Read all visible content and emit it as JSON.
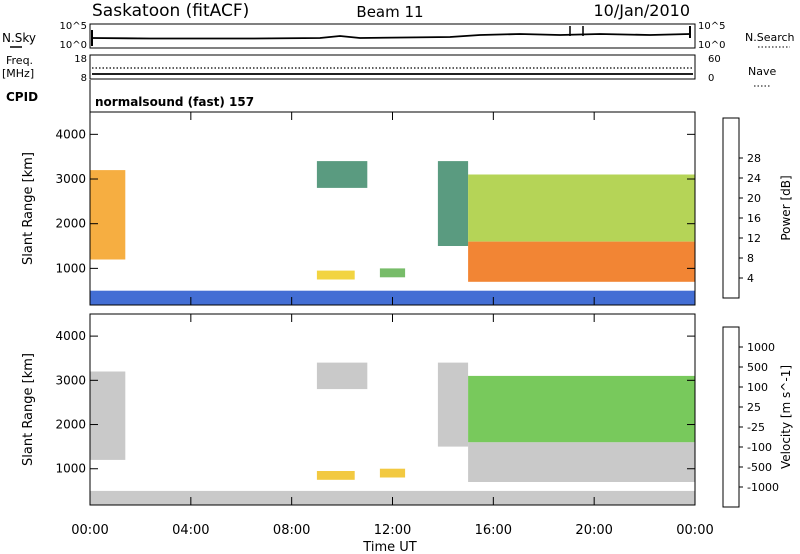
{
  "header": {
    "station": "Saskatoon (fitACF)",
    "beam": "Beam 11",
    "date": "10/Jan/2010"
  },
  "top_panels": {
    "nsky_label": "N.Sky",
    "nsky_ticks": [
      "10^5",
      "10^0"
    ],
    "nsearch_label": "N.Search",
    "nsearch_ticks": [
      "10^5",
      "10^0"
    ],
    "freq_label": "Freq.",
    "freq_unit": "[MHz]",
    "freq_ticks": [
      "18",
      "8"
    ],
    "nave_label": "Nave",
    "nave_ticks": [
      "60",
      "0"
    ],
    "cpid_label": "CPID",
    "cpid_value": "normalsound (fast) 157"
  },
  "x_axis": {
    "label": "Time UT",
    "ticks": [
      "00:00",
      "04:00",
      "08:00",
      "12:00",
      "16:00",
      "20:00",
      "00:00"
    ]
  },
  "chart_data": [
    {
      "type": "heatmap",
      "title": "",
      "quantity": "Power",
      "ylabel": "Slant Range [km]",
      "ylim": [
        180,
        4500
      ],
      "yticks": [
        1000,
        2000,
        3000,
        4000
      ],
      "xlim": [
        0,
        24
      ],
      "colorbar": {
        "label": "Power [dB]",
        "ticks": [
          "4",
          "8",
          "12",
          "16",
          "20",
          "24",
          "28"
        ],
        "colors": [
          "#1a1aff",
          "#2255cc",
          "#3d8a6a",
          "#5fb04f",
          "#a8cc3a",
          "#f0cc20",
          "#f5a020",
          "#f07010",
          "#ee3010"
        ]
      },
      "regions": [
        {
          "t0": 0.0,
          "t1": 1.4,
          "r0": 1200,
          "r1": 3200,
          "value": 22
        },
        {
          "t0": 0.0,
          "t1": 24.0,
          "r0": 180,
          "r1": 500,
          "value": 8
        },
        {
          "t0": 9.0,
          "t1": 10.5,
          "r0": 750,
          "r1": 950,
          "value": 18
        },
        {
          "t0": 11.5,
          "t1": 12.5,
          "r0": 800,
          "r1": 1000,
          "value": 14
        },
        {
          "t0": 9.0,
          "t1": 11.0,
          "r0": 2800,
          "r1": 3400,
          "value": 10
        },
        {
          "t0": 13.8,
          "t1": 15.0,
          "r0": 1500,
          "r1": 3400,
          "value": 10
        },
        {
          "t0": 15.0,
          "t1": 24.0,
          "r0": 700,
          "r1": 1600,
          "value": 26
        },
        {
          "t0": 15.0,
          "t1": 24.0,
          "r0": 1600,
          "r1": 3100,
          "value": 16
        }
      ]
    },
    {
      "type": "heatmap",
      "title": "",
      "quantity": "Velocity",
      "ylabel": "Slant Range [km]",
      "ylim": [
        180,
        4500
      ],
      "yticks": [
        1000,
        2000,
        3000,
        4000
      ],
      "xlim": [
        0,
        24
      ],
      "colorbar": {
        "label": "Velocity [m s^-1]",
        "ticks": [
          "1000",
          "500",
          "100",
          "25",
          "-25",
          "-100",
          "-500",
          "-1000"
        ],
        "colors": [
          "#2040d0",
          "#307080",
          "#3a9a50",
          "#60c040",
          "#c0c0c0",
          "#f0c020",
          "#f09020",
          "#f06010",
          "#ee2010"
        ]
      },
      "regions": [
        {
          "t0": 0.0,
          "t1": 1.4,
          "r0": 1200,
          "r1": 3200,
          "value": 0
        },
        {
          "t0": 0.0,
          "t1": 24.0,
          "r0": 180,
          "r1": 500,
          "value": -100
        },
        {
          "t0": 9.0,
          "t1": 10.5,
          "r0": 750,
          "r1": 950,
          "value": -300
        },
        {
          "t0": 11.5,
          "t1": 12.5,
          "r0": 800,
          "r1": 1000,
          "value": -300
        },
        {
          "t0": 9.0,
          "t1": 11.0,
          "r0": 2800,
          "r1": 3400,
          "value": 0
        },
        {
          "t0": 13.8,
          "t1": 15.0,
          "r0": 1500,
          "r1": 3400,
          "value": 30
        },
        {
          "t0": 15.0,
          "t1": 24.0,
          "r0": 700,
          "r1": 1600,
          "value": 0
        },
        {
          "t0": 15.0,
          "t1": 24.0,
          "r0": 1600,
          "r1": 3100,
          "value": 150
        }
      ]
    }
  ]
}
